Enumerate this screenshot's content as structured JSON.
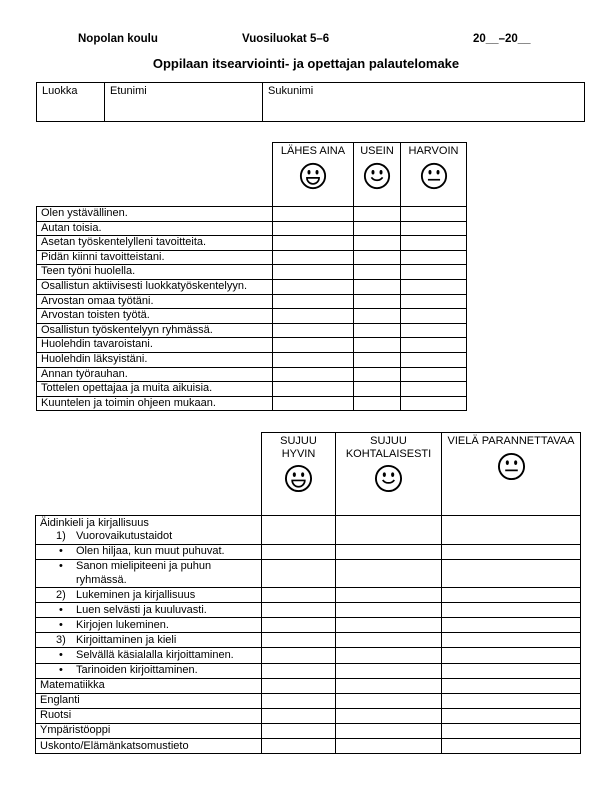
{
  "colors": {
    "page_background": "#ffffff",
    "text": "#000000",
    "border": "#000000"
  },
  "header": {
    "school": "Nopolan koulu",
    "grades": "Vuosiluokat 5–6",
    "school_year": "20__–20__",
    "title": "Oppilaan itsearviointi- ja opettajan palautelomake"
  },
  "student_info": {
    "fields": [
      {
        "key": "luokka",
        "label": "Luokka",
        "value": ""
      },
      {
        "key": "etunimi",
        "label": "Etunimi",
        "value": ""
      },
      {
        "key": "sukunimi",
        "label": "Sukunimi",
        "value": ""
      }
    ]
  },
  "behavior_table": {
    "columns": [
      {
        "key": "lahes-aina",
        "label": "LÄHES AINA",
        "icon": "happy-face-icon",
        "mouth": "grin"
      },
      {
        "key": "usein",
        "label": "USEIN",
        "icon": "smiling-face-icon",
        "mouth": "smile"
      },
      {
        "key": "harvoin",
        "label": "HARVOIN",
        "icon": "neutral-face-icon",
        "mouth": "neutral"
      }
    ],
    "rows": [
      "Olen ystävällinen.",
      "Autan toisia.",
      "Asetan työskentelylleni tavoitteita.",
      "Pidän kiinni tavoitteistani.",
      "Teen työni huolella.",
      "Osallistun aktiivisesti luokkatyöskentelyyn.",
      "Arvostan omaa työtäni.",
      "Arvostan toisten työtä.",
      "Osallistun työskentelyyn ryhmässä.",
      "Huolehdin tavaroistani.",
      "Huolehdin läksyistäni.",
      "Annan työrauhan.",
      "Tottelen opettajaa ja muita aikuisia.",
      "Kuuntelen ja toimin ohjeen mukaan."
    ]
  },
  "subjects_table": {
    "columns": [
      {
        "key": "sujuu-hyvin",
        "label": "SUJUU HYVIN",
        "icon": "happy-face-icon",
        "mouth": "grin"
      },
      {
        "key": "sujuu-kohtalaisesti",
        "label": "SUJUU KOHTALAISESTI",
        "icon": "smiling-face-icon",
        "mouth": "smile"
      },
      {
        "key": "viela-parannettavaa",
        "label": "VIELÄ PARANNETTAVAA",
        "icon": "neutral-face-icon",
        "mouth": "neutral"
      }
    ],
    "rows": [
      {
        "lines": [
          {
            "style": "plain",
            "text": "Äidinkieli ja kirjallisuus"
          },
          {
            "style": "numbered",
            "prefix": "1)",
            "text": "Vuorovaikutustaidot"
          }
        ]
      },
      {
        "lines": [
          {
            "style": "bullet",
            "text": "Olen hiljaa, kun muut puhuvat."
          }
        ]
      },
      {
        "lines": [
          {
            "style": "bullet",
            "text": "Sanon mielipiteeni ja puhun ryhmässä."
          }
        ]
      },
      {
        "lines": [
          {
            "style": "numbered",
            "prefix": "2)",
            "text": "Lukeminen ja kirjallisuus"
          }
        ]
      },
      {
        "lines": [
          {
            "style": "bullet",
            "text": "Luen selvästi ja kuuluvasti."
          }
        ]
      },
      {
        "lines": [
          {
            "style": "bullet",
            "text": "Kirjojen lukeminen."
          }
        ]
      },
      {
        "lines": [
          {
            "style": "numbered",
            "prefix": "3)",
            "text": "Kirjoittaminen ja kieli"
          }
        ]
      },
      {
        "lines": [
          {
            "style": "bullet",
            "text": "Selvällä käsialalla kirjoittaminen."
          }
        ]
      },
      {
        "lines": [
          {
            "style": "bullet",
            "text": "Tarinoiden kirjoittaminen."
          }
        ]
      },
      {
        "lines": [
          {
            "style": "plain",
            "text": "Matematiikka"
          }
        ]
      },
      {
        "lines": [
          {
            "style": "plain",
            "text": "Englanti"
          }
        ]
      },
      {
        "lines": [
          {
            "style": "plain",
            "text": "Ruotsi"
          }
        ]
      },
      {
        "lines": [
          {
            "style": "plain",
            "text": "Ympäristöoppi"
          }
        ]
      },
      {
        "lines": [
          {
            "style": "plain",
            "text": "Uskonto/Elämänkatsomustieto"
          }
        ]
      }
    ]
  },
  "icons": {
    "bullet": "•"
  }
}
